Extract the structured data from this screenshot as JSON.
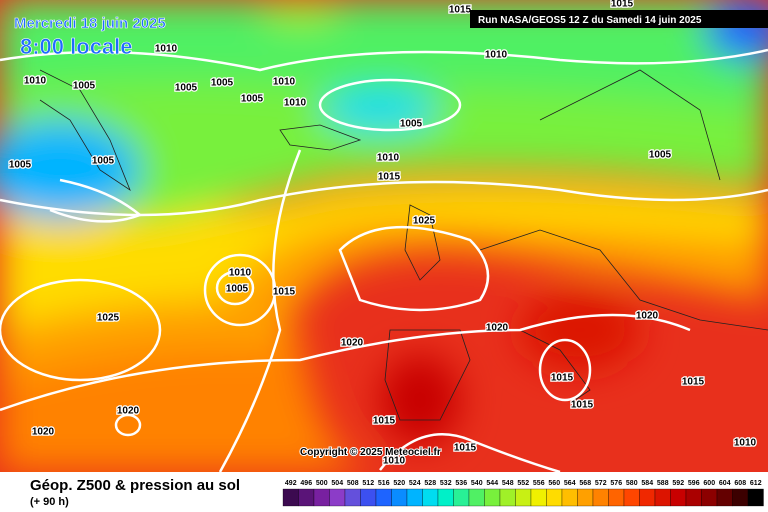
{
  "header": {
    "date": "Mercredi 18 juin 2025",
    "time": "8:00 locale",
    "run": "Run NASA/GEOS5 12 Z du Samedi 14 juin 2025"
  },
  "copyright": "Copyright © 2025 Meteociel.fr",
  "footer": {
    "title": "Géop. Z500 & pression au sol",
    "lead": "(+ 90 h)"
  },
  "isobar_labels": [
    1015,
    1015,
    1010,
    1010,
    1005,
    1005,
    1005,
    1010,
    1005,
    1010,
    1010,
    1005,
    1005,
    1005,
    1010,
    1015,
    1005,
    1025,
    1010,
    1005,
    1015,
    1025,
    1020,
    1020,
    1020,
    1015,
    1015,
    1015,
    1020,
    1020,
    1015,
    1015,
    1010,
    1010
  ],
  "scale": {
    "labels": [
      492,
      496,
      500,
      504,
      508,
      512,
      516,
      520,
      524,
      528,
      532,
      536,
      540,
      544,
      548,
      552,
      556,
      560,
      564,
      568,
      572,
      576,
      580,
      584,
      588,
      592,
      596,
      600,
      604,
      608,
      612
    ],
    "colors": [
      "#3c0a50",
      "#5a1478",
      "#7820a0",
      "#8c3cc8",
      "#6450dc",
      "#3c50f0",
      "#1e64ff",
      "#0a8cff",
      "#00b4ff",
      "#00dcf0",
      "#00f0c8",
      "#28f096",
      "#50f064",
      "#78f03c",
      "#a0f028",
      "#c8f014",
      "#f0f000",
      "#ffdc00",
      "#ffbe00",
      "#ffa000",
      "#ff8200",
      "#ff6400",
      "#ff4600",
      "#f02800",
      "#dc1400",
      "#c80000",
      "#aa0000",
      "#8c0000",
      "#640000",
      "#3c0000",
      "#000000"
    ]
  }
}
